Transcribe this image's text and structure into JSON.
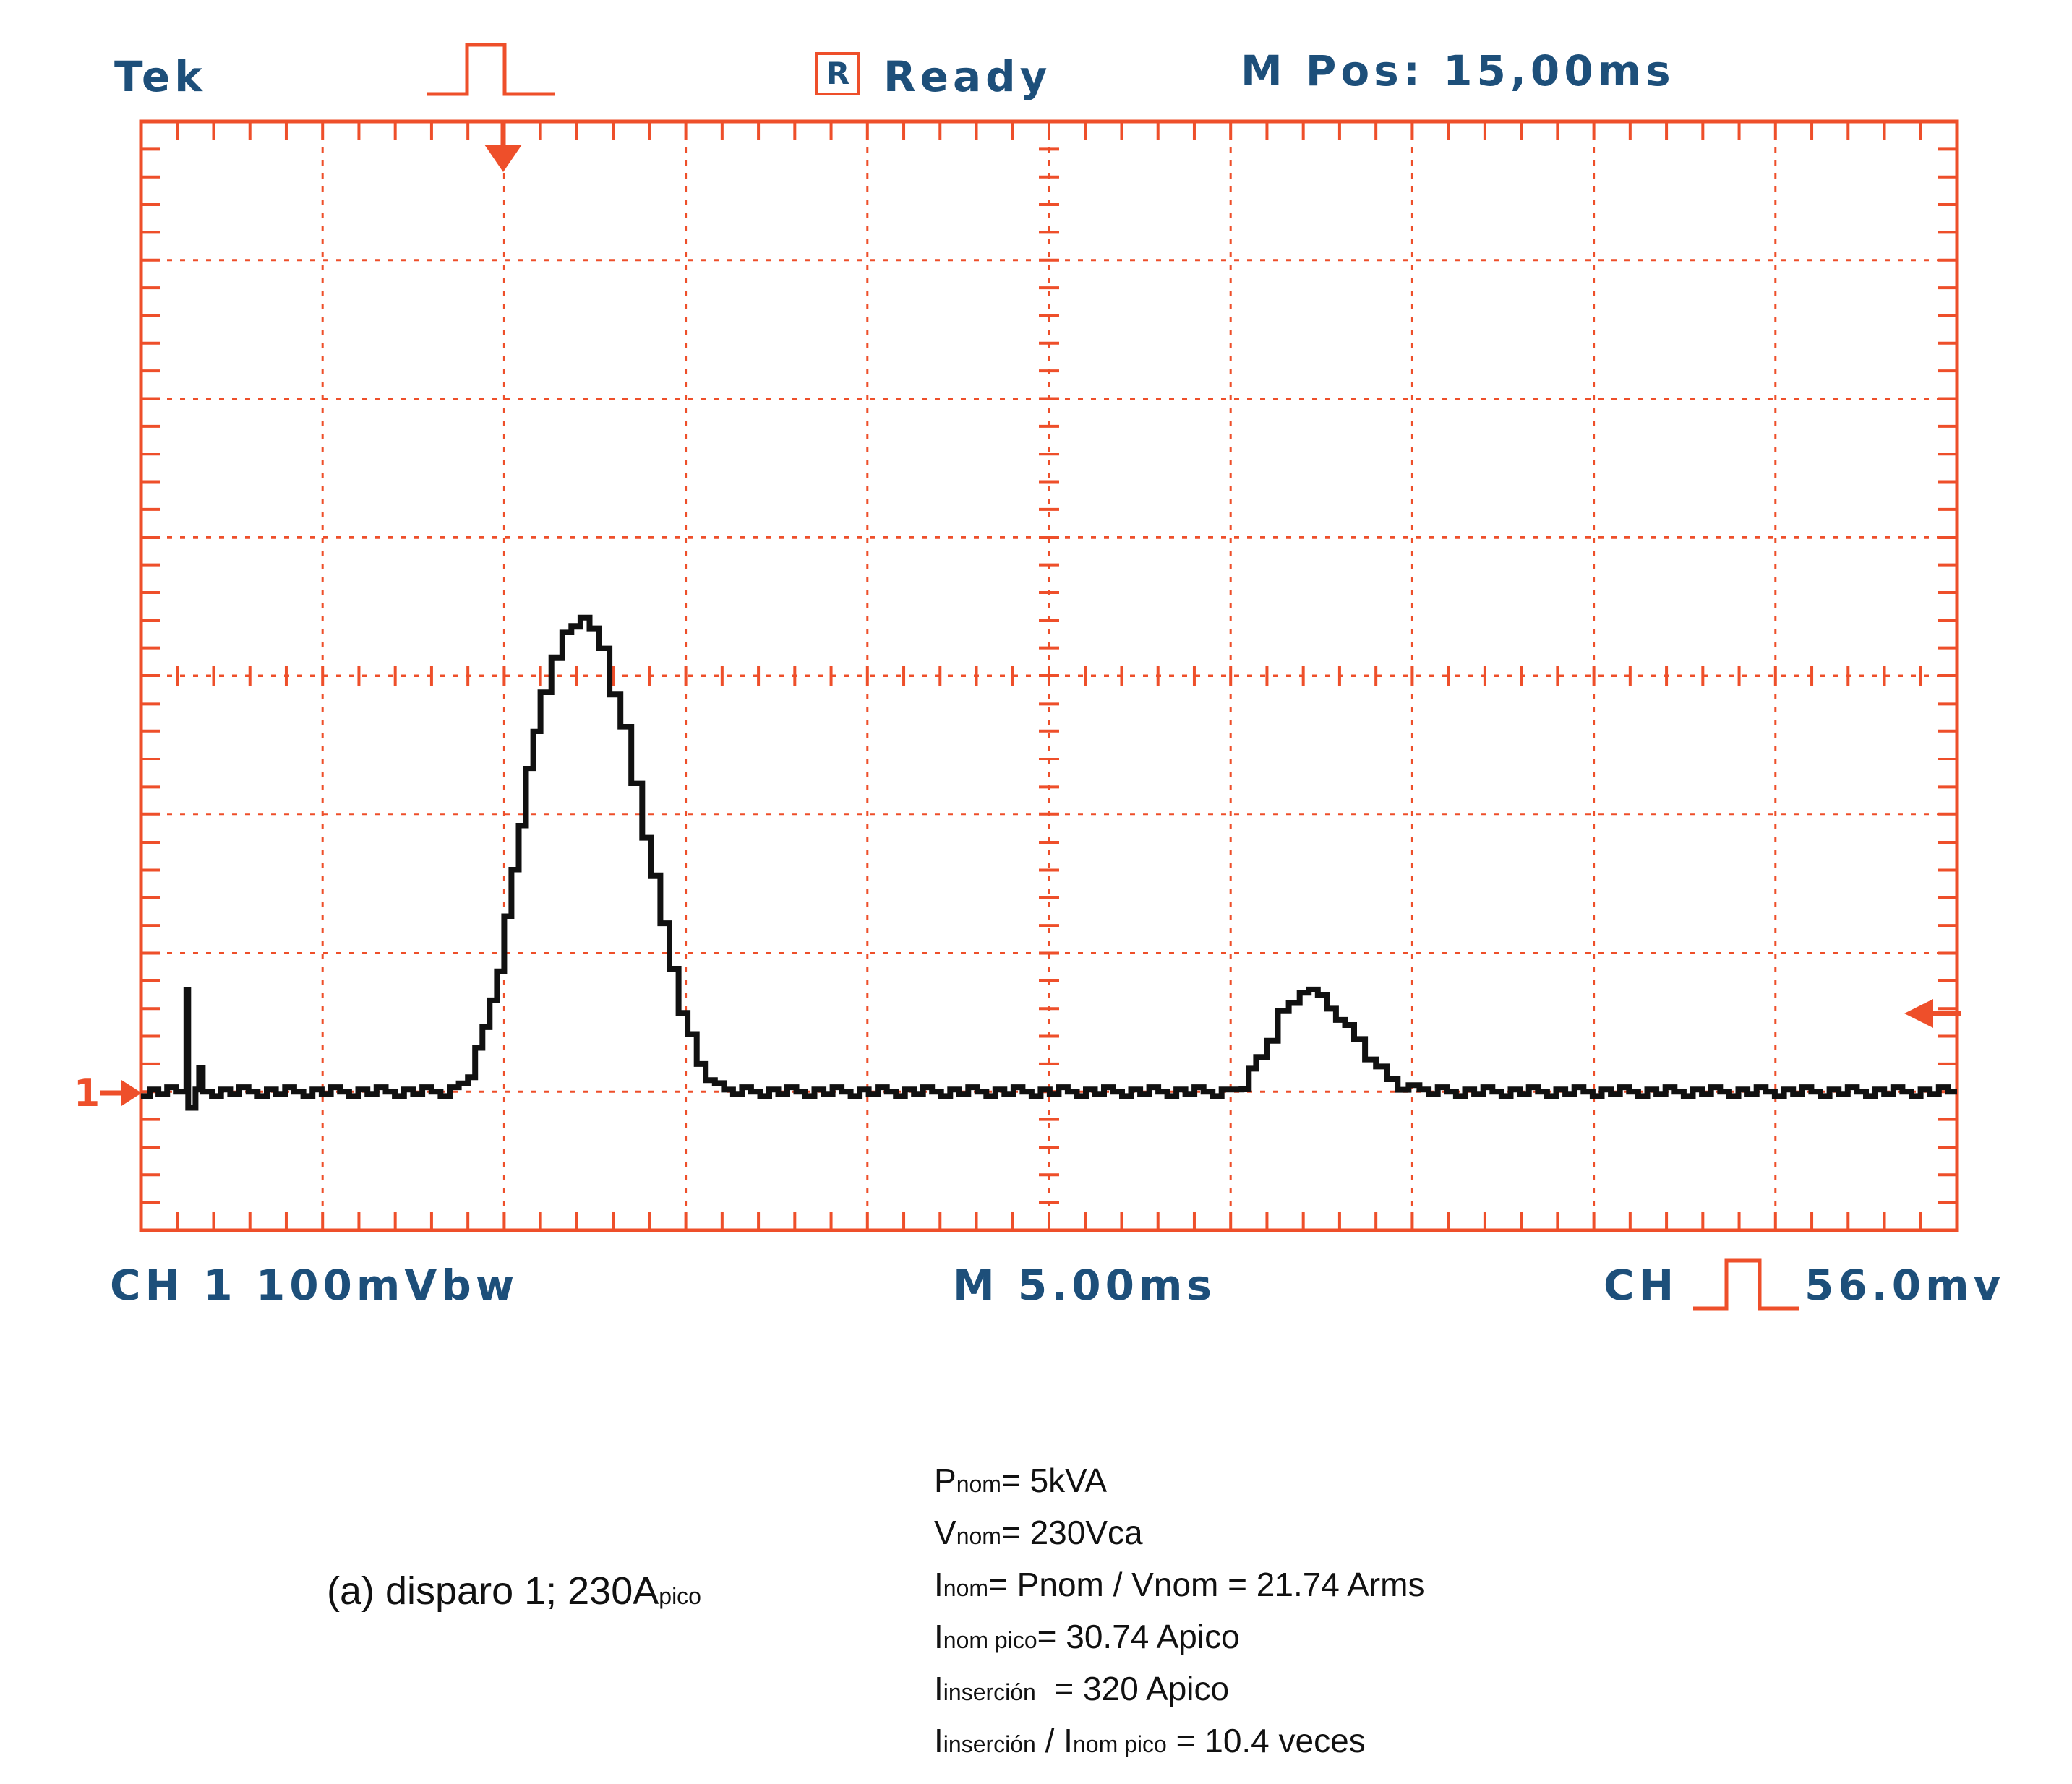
{
  "header": {
    "brand": "Tek",
    "status_box": "R",
    "status": "Ready",
    "mpos": "M Pos: 15,00ms"
  },
  "footer": {
    "channel": "CH 1 100mVbw",
    "timebase": "M 5.00ms",
    "trigger_prefix": "CH",
    "trigger_level": "56.0mv"
  },
  "markers": {
    "channel_marker": "1"
  },
  "colors": {
    "grid": "#ee4f2a",
    "trace": "#111111",
    "header_text": "#1d4f7a"
  },
  "caption": {
    "main": "(a) disparo 1; 230A",
    "sub": "pico"
  },
  "notes": [
    {
      "parts": [
        {
          "t": "P"
        },
        {
          "t": "nom",
          "sub": true
        },
        {
          "t": "= 5kVA"
        }
      ]
    },
    {
      "parts": [
        {
          "t": "V"
        },
        {
          "t": "nom",
          "sub": true
        },
        {
          "t": "= 230Vca"
        }
      ]
    },
    {
      "parts": [
        {
          "t": "I"
        },
        {
          "t": "nom",
          "sub": true
        },
        {
          "t": "= Pnom / Vnom = 21.74 Arms"
        }
      ]
    },
    {
      "parts": [
        {
          "t": "I"
        },
        {
          "t": "nom pico",
          "sub": true
        },
        {
          "t": "= 30.74 Apico"
        }
      ]
    },
    {
      "parts": [
        {
          "t": "I"
        },
        {
          "t": "inserción",
          "sub": true
        },
        {
          "t": "  = 320 Apico"
        }
      ]
    },
    {
      "parts": [
        {
          "t": "I"
        },
        {
          "t": "inserción",
          "sub": true
        },
        {
          "t": " / I"
        },
        {
          "t": "nom pico",
          "sub": true
        },
        {
          "t": " = 10.4 veces"
        }
      ]
    }
  ],
  "chart_data": {
    "type": "line",
    "title": "",
    "xlabel": "",
    "ylabel": "",
    "xlim": [
      0,
      50
    ],
    "ylim": [
      -100,
      700
    ],
    "x_divisions": 10,
    "y_divisions": 8,
    "grid": true,
    "x_units": "ms",
    "y_units": "mV",
    "trigger_time_ms": 10,
    "trigger_level_mV": 56.0,
    "series": [
      {
        "values": [
          [
            0,
            0
          ],
          [
            1.2,
            0
          ],
          [
            1.25,
            70
          ],
          [
            1.3,
            -10
          ],
          [
            1.5,
            0
          ],
          [
            1.6,
            20
          ],
          [
            1.7,
            0
          ],
          [
            8.5,
            0
          ],
          [
            9,
            12
          ],
          [
            9.4,
            45
          ],
          [
            9.8,
            90
          ],
          [
            10.2,
            160
          ],
          [
            10.6,
            230
          ],
          [
            11,
            290
          ],
          [
            11.6,
            330
          ],
          [
            12.1,
            345
          ],
          [
            12.6,
            320
          ],
          [
            13.2,
            260
          ],
          [
            13.8,
            185
          ],
          [
            14.3,
            120
          ],
          [
            14.8,
            60
          ],
          [
            15.3,
            20
          ],
          [
            15.8,
            3
          ],
          [
            16.3,
            0
          ],
          [
            30,
            0
          ],
          [
            30.3,
            5
          ],
          [
            30.7,
            25
          ],
          [
            31.3,
            55
          ],
          [
            31.9,
            73
          ],
          [
            32.4,
            68
          ],
          [
            32.9,
            55
          ],
          [
            33.4,
            38
          ],
          [
            34,
            15
          ],
          [
            34.6,
            3
          ],
          [
            35.2,
            0
          ],
          [
            50,
            0
          ]
        ]
      }
    ]
  }
}
